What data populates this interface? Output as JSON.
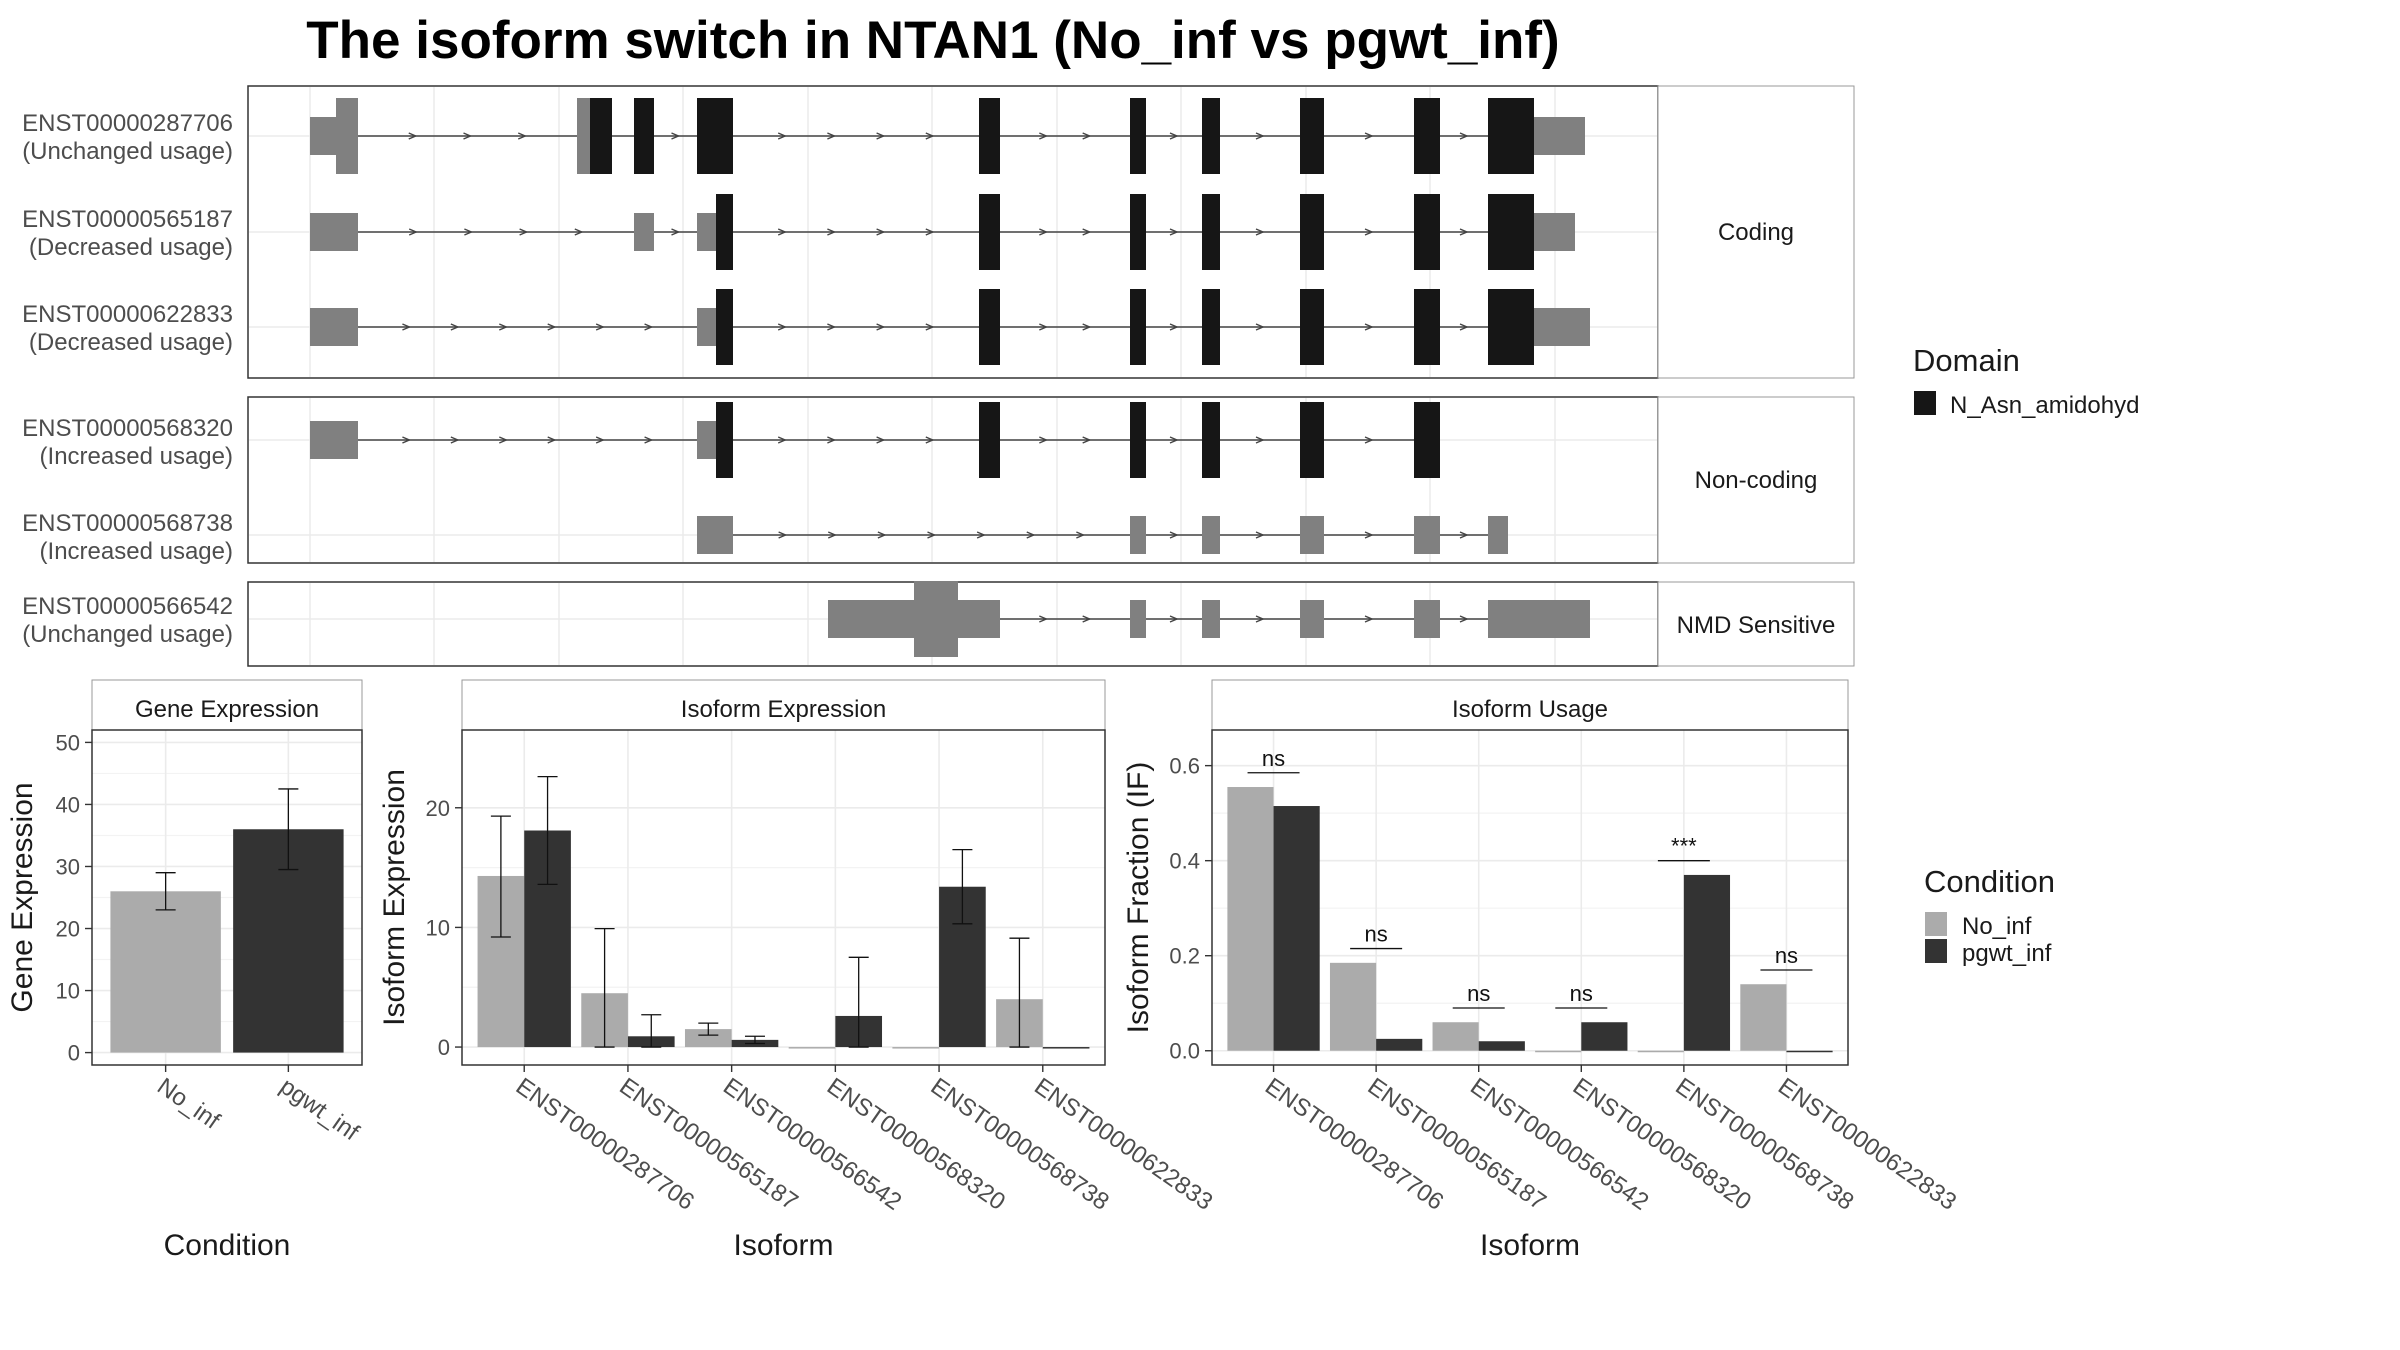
{
  "title": "The isoform switch in NTAN1 (No_inf vs pgwt_inf)",
  "colors": {
    "domain": "#161616",
    "utr": "#808080",
    "no_inf": "#ababab",
    "pgwt_inf": "#333333",
    "grid_major": "#ebebeb",
    "grid_minor": "#f5f5f5",
    "strip_bg": "#ffffff",
    "panel_border": "#333333"
  },
  "structure": {
    "facets": [
      {
        "label": "Coding",
        "isoforms": [
          {
            "id": "ENST00000287706",
            "usage": "(Unchanged usage)"
          },
          {
            "id": "ENST00000565187",
            "usage": "(Decreased usage)"
          },
          {
            "id": "ENST00000622833",
            "usage": "(Decreased usage)"
          }
        ]
      },
      {
        "label": "Non-coding",
        "isoforms": [
          {
            "id": "ENST00000568320",
            "usage": "(Increased usage)"
          },
          {
            "id": "ENST00000568738",
            "usage": "(Increased usage)"
          }
        ]
      },
      {
        "label": "NMD Sensitive",
        "isoforms": [
          {
            "id": "ENST00000566542",
            "usage": "(Unchanged usage)"
          }
        ]
      }
    ],
    "legend": {
      "title": "Domain",
      "items": [
        "N_Asn_amidohyd"
      ]
    }
  },
  "chart_data": [
    {
      "type": "bar",
      "title": "Gene Expression",
      "xlabel": "Condition",
      "ylabel": "Gene Expression",
      "categories": [
        "No_inf",
        "pgwt_inf"
      ],
      "values": [
        26,
        36
      ],
      "errors": [
        [
          23,
          29
        ],
        [
          29.5,
          42.5
        ]
      ],
      "ylim": [
        -2,
        52
      ],
      "yticks": [
        0,
        10,
        20,
        30,
        40,
        50
      ]
    },
    {
      "type": "bar",
      "title": "Isoform Expression",
      "xlabel": "Isoform",
      "ylabel": "Isoform Expression",
      "categories": [
        "ENST00000287706",
        "ENST00000565187",
        "ENST00000566542",
        "ENST00000568320",
        "ENST00000568738",
        "ENST00000622833"
      ],
      "series": [
        {
          "name": "No_inf",
          "values": [
            14.3,
            4.5,
            1.5,
            0,
            0,
            4.0
          ],
          "errors": [
            [
              9.2,
              19.3
            ],
            [
              0,
              9.9
            ],
            [
              1.0,
              2.0
            ],
            [
              0,
              0
            ],
            [
              0,
              0
            ],
            [
              0,
              9.1
            ]
          ]
        },
        {
          "name": "pgwt_inf",
          "values": [
            18.1,
            0.9,
            0.6,
            2.6,
            13.4,
            0
          ],
          "errors": [
            [
              13.6,
              22.6
            ],
            [
              0,
              2.7
            ],
            [
              0.3,
              0.9
            ],
            [
              0,
              7.5
            ],
            [
              10.3,
              16.5
            ],
            [
              0,
              0
            ]
          ]
        }
      ],
      "ylim": [
        -1.5,
        26.5
      ],
      "yticks": [
        0,
        10,
        20
      ]
    },
    {
      "type": "bar",
      "title": "Isoform Usage",
      "xlabel": "Isoform",
      "ylabel": "Isoform Fraction (IF)",
      "categories": [
        "ENST00000287706",
        "ENST00000565187",
        "ENST00000566542",
        "ENST00000568320",
        "ENST00000568738",
        "ENST00000622833"
      ],
      "series": [
        {
          "name": "No_inf",
          "values": [
            0.555,
            0.185,
            0.06,
            0,
            0,
            0.14
          ]
        },
        {
          "name": "pgwt_inf",
          "values": [
            0.515,
            0.025,
            0.02,
            0.06,
            0.37,
            0
          ]
        }
      ],
      "significance": [
        "ns",
        "ns",
        "ns",
        "ns",
        "***",
        "ns"
      ],
      "sig_y": [
        0.585,
        0.215,
        0.09,
        0.09,
        0.4,
        0.17
      ],
      "ylim": [
        -0.03,
        0.675
      ],
      "yticks": [
        0.0,
        0.2,
        0.4,
        0.6
      ]
    }
  ],
  "condition_legend": {
    "title": "Condition",
    "items": [
      "No_inf",
      "pgwt_inf"
    ]
  }
}
